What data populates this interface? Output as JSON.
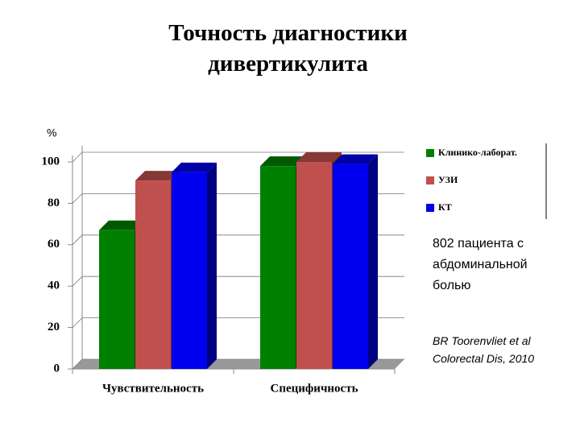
{
  "chart_data": {
    "type": "bar3d",
    "title": "Точность диагностики дивертикулита",
    "y_label": "%",
    "categories": [
      "Чувствительность",
      "Специфичность"
    ],
    "series": [
      {
        "name": "Клинико-лаборат.",
        "color": "#008000",
        "values": [
          67,
          98
        ]
      },
      {
        "name": "УЗИ",
        "color": "#c0504d",
        "values": [
          91,
          100
        ]
      },
      {
        "name": "КТ",
        "color": "#0000ee",
        "values": [
          95,
          99
        ]
      }
    ],
    "ylim": [
      0,
      100
    ],
    "yticks": [
      0,
      20,
      40,
      60,
      80,
      100
    ],
    "grid": true,
    "legend": "right",
    "note": "802 пациента с абдоминальной болью",
    "citation": [
      "BR Toorenvliet et al",
      "Colorectal Dis, 2010"
    ]
  }
}
